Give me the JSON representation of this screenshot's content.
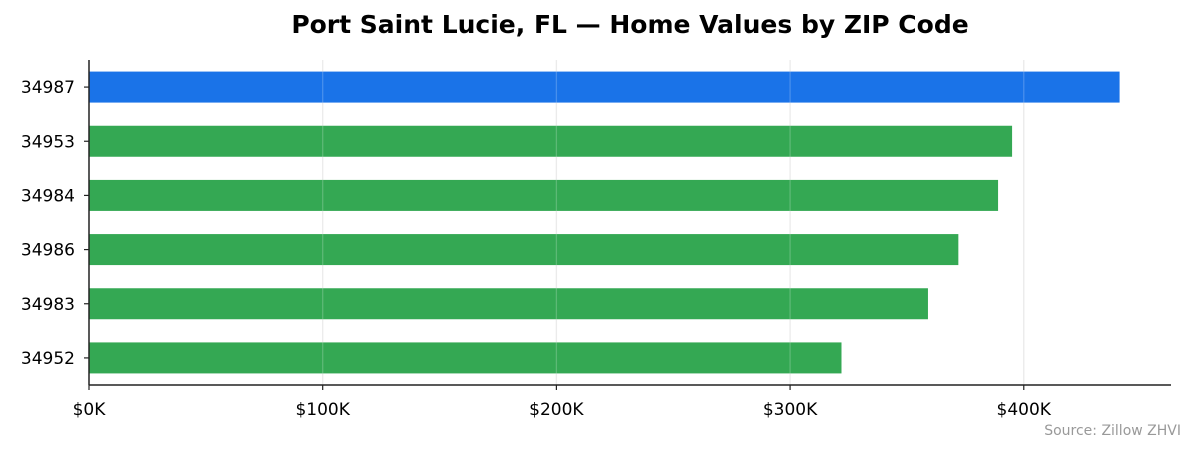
{
  "chart_data": {
    "type": "bar",
    "orientation": "horizontal",
    "title": "Port Saint Lucie, FL — Home Values by ZIP Code",
    "source": "Source: Zillow ZHVI",
    "categories": [
      "34987",
      "34953",
      "34984",
      "34986",
      "34983",
      "34952"
    ],
    "values": [
      441000,
      395000,
      389000,
      372000,
      359000,
      322000
    ],
    "xlim": [
      0,
      463000
    ],
    "xticks": [
      0,
      100000,
      200000,
      300000,
      400000
    ],
    "xtick_labels": [
      "$0K",
      "$100K",
      "$200K",
      "$300K",
      "$400K"
    ],
    "xlabel": "",
    "ylabel": "",
    "grid": "vertical",
    "colors": {
      "highlight": "#1a73e8",
      "default": "#34a853",
      "grid": "#e6e6e6",
      "axis": "#222222"
    },
    "highlight_index": 0
  }
}
